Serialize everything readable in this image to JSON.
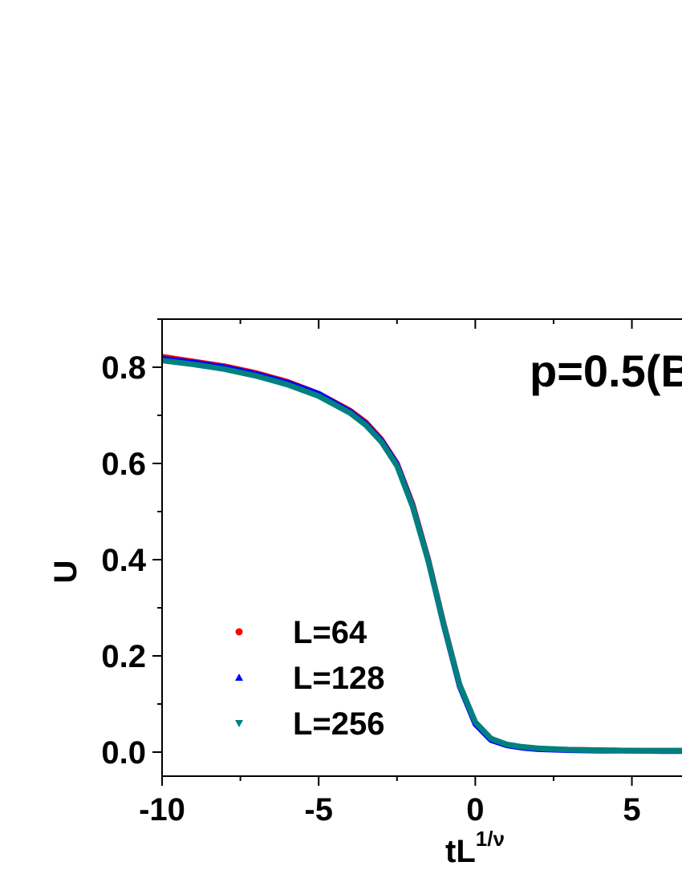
{
  "chart_data": {
    "type": "line",
    "title": "",
    "annotation": "p=0.5(B",
    "xlabel": {
      "base": "tL",
      "superscript": "1/ν"
    },
    "ylabel": "U",
    "xlim": [
      -10,
      6.6
    ],
    "ylim": [
      -0.05,
      0.9
    ],
    "x_ticks": [
      -10,
      -5,
      0,
      5
    ],
    "x_tick_labels": [
      "-10",
      "-5",
      "0",
      "5"
    ],
    "y_ticks": [
      0.0,
      0.2,
      0.4,
      0.6,
      0.8
    ],
    "y_tick_labels": [
      "0.0",
      "0.2",
      "0.4",
      "0.6",
      "0.8"
    ],
    "grid": false,
    "legend_position": "bottom-left",
    "x": [
      -10,
      -9,
      -8,
      -7,
      -6,
      -5,
      -4,
      -3.5,
      -3,
      -2.5,
      -2,
      -1.5,
      -1,
      -0.5,
      0,
      0.5,
      1,
      1.5,
      2,
      3,
      4,
      5,
      6,
      6.6
    ],
    "series": [
      {
        "name": "L=64",
        "marker": "circle",
        "color": "#ff0000",
        "values": [
          0.822,
          0.812,
          0.802,
          0.788,
          0.77,
          0.745,
          0.71,
          0.686,
          0.65,
          0.6,
          0.515,
          0.4,
          0.265,
          0.14,
          0.062,
          0.028,
          0.016,
          0.01,
          0.007,
          0.005,
          0.004,
          0.003,
          0.003,
          0.003
        ]
      },
      {
        "name": "L=128",
        "marker": "triangle-up",
        "color": "#0000ff",
        "values": [
          0.818,
          0.81,
          0.8,
          0.786,
          0.768,
          0.745,
          0.708,
          0.683,
          0.648,
          0.598,
          0.512,
          0.398,
          0.262,
          0.137,
          0.058,
          0.025,
          0.014,
          0.009,
          0.006,
          0.004,
          0.003,
          0.003,
          0.002,
          0.002
        ]
      },
      {
        "name": "L=256",
        "marker": "triangle-down",
        "color": "#008080",
        "values": [
          0.814,
          0.806,
          0.796,
          0.782,
          0.764,
          0.74,
          0.705,
          0.68,
          0.645,
          0.595,
          0.51,
          0.397,
          0.263,
          0.14,
          0.062,
          0.028,
          0.016,
          0.011,
          0.008,
          0.005,
          0.004,
          0.003,
          0.003,
          0.003
        ]
      }
    ]
  }
}
